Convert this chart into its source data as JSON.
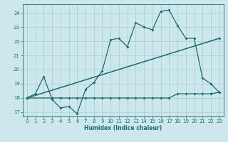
{
  "xlabel": "Humidex (Indice chaleur)",
  "bg_color": "#cde8ec",
  "grid_color": "#b0d0d8",
  "line_color": "#1a6b6b",
  "x_ticks": [
    0,
    1,
    2,
    3,
    4,
    5,
    6,
    7,
    8,
    9,
    10,
    11,
    12,
    13,
    14,
    15,
    16,
    17,
    18,
    19,
    20,
    21,
    22,
    23
  ],
  "y_ticks": [
    17,
    18,
    19,
    20,
    21,
    22,
    23,
    24
  ],
  "ylim": [
    16.7,
    24.6
  ],
  "xlim": [
    -0.5,
    23.5
  ],
  "curve1_x": [
    0,
    1,
    2,
    3,
    4,
    5,
    6,
    7,
    8,
    9,
    10,
    11,
    12,
    13,
    14,
    15,
    16,
    17,
    18,
    19,
    20,
    21,
    22,
    23
  ],
  "curve1_y": [
    18.0,
    18.3,
    19.5,
    17.9,
    17.3,
    17.4,
    16.9,
    18.6,
    19.1,
    19.9,
    22.1,
    22.2,
    21.6,
    23.3,
    23.0,
    22.8,
    24.1,
    24.2,
    23.1,
    22.2,
    22.2,
    19.4,
    19.0,
    18.4
  ],
  "curve2_x": [
    0,
    23
  ],
  "curve2_y": [
    18.0,
    22.2
  ],
  "curve3_x": [
    0,
    3,
    4,
    5,
    6,
    7,
    8,
    9,
    10,
    11,
    12,
    13,
    14,
    15,
    16,
    17,
    18,
    19,
    20,
    21,
    22,
    23
  ],
  "curve3_y": [
    18.0,
    18.0,
    18.0,
    18.0,
    18.0,
    18.0,
    18.0,
    18.0,
    18.0,
    18.0,
    18.0,
    18.0,
    18.0,
    18.0,
    18.0,
    18.0,
    18.3,
    18.3,
    18.3,
    18.3,
    18.3,
    18.4
  ],
  "xlabel_fontsize": 5.5,
  "tick_fontsize": 5.0
}
